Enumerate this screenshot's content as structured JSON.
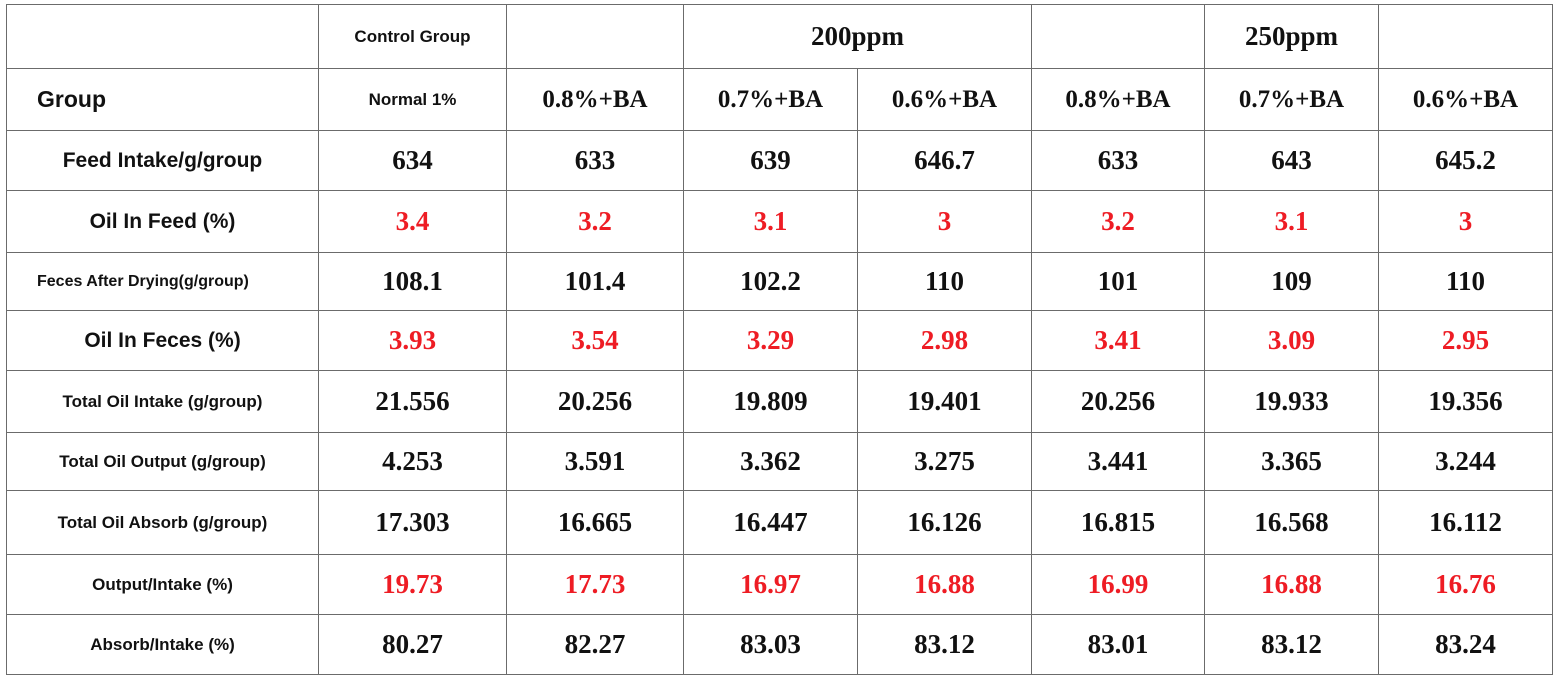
{
  "header": {
    "control_group": "Control Group",
    "dose_200": "200ppm",
    "dose_250": "250ppm",
    "group_label": "Group",
    "columns": [
      "Normal 1%",
      "0.8%+BA",
      "0.7%+BA",
      "0.6%+BA",
      "0.8%+BA",
      "0.7%+BA",
      "0.6%+BA"
    ]
  },
  "rows": [
    {
      "label": "Feed Intake/g/group",
      "values": [
        "634",
        "633",
        "639",
        "646.7",
        "633",
        "643",
        "645.2"
      ]
    },
    {
      "label": "Oil In Feed  (%)",
      "values": [
        "3.4",
        "3.2",
        "3.1",
        "3",
        "3.2",
        "3.1",
        "3"
      ]
    },
    {
      "label": "Feces After Drying(g/group)",
      "values": [
        "108.1",
        "101.4",
        "102.2",
        "110",
        "101",
        "109",
        "110"
      ]
    },
    {
      "label": "Oil In Feces (%)",
      "values": [
        "3.93",
        "3.54",
        "3.29",
        "2.98",
        "3.41",
        "3.09",
        "2.95"
      ]
    },
    {
      "label": "Total Oil Intake  (g/group)",
      "values": [
        "21.556",
        "20.256",
        "19.809",
        "19.401",
        "20.256",
        "19.933",
        "19.356"
      ]
    },
    {
      "label": "Total Oil Output  (g/group)",
      "values": [
        "4.253",
        "3.591",
        "3.362",
        "3.275",
        "3.441",
        "3.365",
        "3.244"
      ]
    },
    {
      "label": "Total Oil Absorb  (g/group)",
      "values": [
        "17.303",
        "16.665",
        "16.447",
        "16.126",
        "16.815",
        "16.568",
        "16.112"
      ]
    },
    {
      "label": "Output/Intake   (%)",
      "values": [
        "19.73",
        "17.73",
        "16.97",
        "16.88",
        "16.99",
        "16.88",
        "16.76"
      ]
    },
    {
      "label": "Absorb/Intake  (%)",
      "values": [
        "80.27",
        "82.27",
        "83.03",
        "83.12",
        "83.01",
        "83.12",
        "83.24"
      ]
    }
  ],
  "colors": {
    "text": "#111111",
    "highlight_red": "#ee1c24",
    "grid": "#6b6b6b"
  }
}
